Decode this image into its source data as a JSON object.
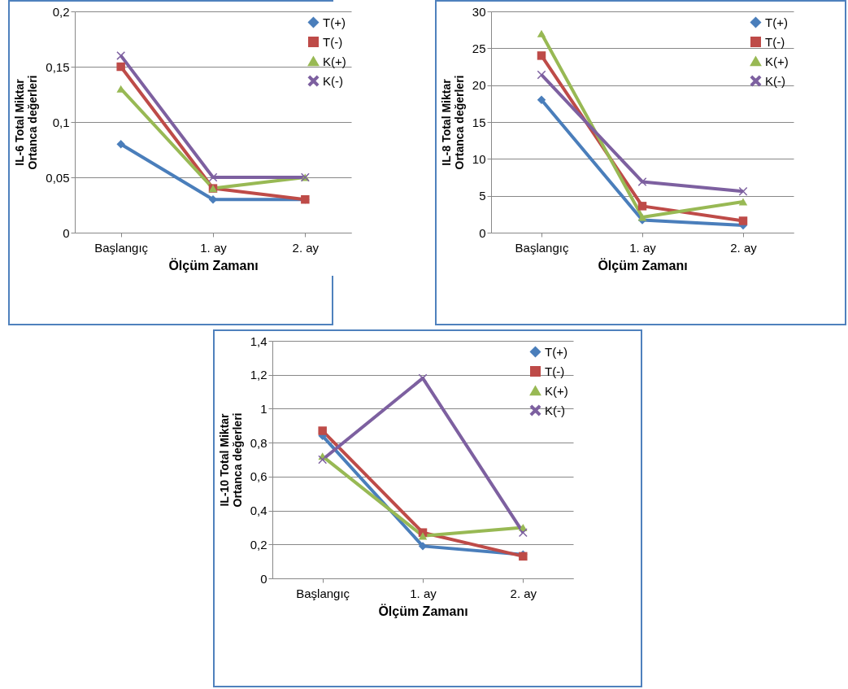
{
  "chart_data": [
    {
      "type": "line",
      "xlabel": "Ölçüm Zamanı",
      "ylabel": "IL-6 Total Miktar\nOrtanca değerleri",
      "categories": [
        "Başlangıç",
        "1. ay",
        "2. ay"
      ],
      "ylim": [
        0,
        0.2
      ],
      "yticks": [
        0,
        {
          "value": 0.05,
          "label": "0,05"
        },
        {
          "value": 0.1,
          "label": "0,1"
        },
        {
          "value": 0.15,
          "label": "0,15"
        },
        {
          "value": 0.2,
          "label": "0,2"
        }
      ],
      "grid": "y",
      "legend": "top right",
      "series": [
        {
          "name": "T(+)",
          "color": "#4a7ebb",
          "marker": "diamond",
          "values": [
            0.08,
            0.03,
            0.03
          ]
        },
        {
          "name": "T(-)",
          "color": "#be4b48",
          "marker": "square",
          "values": [
            0.15,
            0.04,
            0.03
          ]
        },
        {
          "name": "K(+)",
          "color": "#98b954",
          "marker": "triangle",
          "values": [
            0.13,
            0.04,
            0.05
          ]
        },
        {
          "name": "K(-)",
          "color": "#7d60a0",
          "marker": "cross",
          "values": [
            0.16,
            0.05,
            0.05
          ]
        }
      ]
    },
    {
      "type": "line",
      "xlabel": "Ölçüm Zamanı",
      "ylabel": "IL-8  Total Miktar\nOrtanca değerleri",
      "categories": [
        "Başlangıç",
        "1. ay",
        "2. ay"
      ],
      "ylim": [
        0,
        30
      ],
      "yticks": [
        0,
        5,
        10,
        15,
        20,
        25,
        30
      ],
      "grid": "y",
      "legend": "top right",
      "series": [
        {
          "name": "T(+)",
          "color": "#4a7ebb",
          "marker": "diamond",
          "values": [
            18,
            1.7,
            1
          ]
        },
        {
          "name": "T(-)",
          "color": "#be4b48",
          "marker": "square",
          "values": [
            24,
            3.6,
            1.6
          ]
        },
        {
          "name": "K(+)",
          "color": "#98b954",
          "marker": "triangle",
          "values": [
            27,
            2.1,
            4.2
          ]
        },
        {
          "name": "K(-)",
          "color": "#7d60a0",
          "marker": "cross",
          "values": [
            21.4,
            6.9,
            5.6
          ]
        }
      ]
    },
    {
      "type": "line",
      "xlabel": "Ölçüm Zamanı",
      "ylabel": "IL-10  Total Miktar\nOrtanca değerleri",
      "categories": [
        "Başlangıç",
        "1. ay",
        "2. ay"
      ],
      "ylim": [
        0,
        1.4
      ],
      "yticks": [
        0,
        {
          "value": 0.2,
          "label": "0,2"
        },
        {
          "value": 0.4,
          "label": "0,4"
        },
        {
          "value": 0.6,
          "label": "0,6"
        },
        {
          "value": 0.8,
          "label": "0,8"
        },
        1,
        {
          "value": 1.2,
          "label": "1,2"
        },
        {
          "value": 1.4,
          "label": "1,4"
        }
      ],
      "grid": "y",
      "legend": "top right",
      "series": [
        {
          "name": "T(+)",
          "color": "#4a7ebb",
          "marker": "diamond",
          "values": [
            0.84,
            0.19,
            0.14
          ]
        },
        {
          "name": "T(-)",
          "color": "#be4b48",
          "marker": "square",
          "values": [
            0.87,
            0.27,
            0.13
          ]
        },
        {
          "name": "K(+)",
          "color": "#98b954",
          "marker": "triangle",
          "values": [
            0.72,
            0.25,
            0.3
          ]
        },
        {
          "name": "K(-)",
          "color": "#7d60a0",
          "marker": "cross",
          "values": [
            0.7,
            1.18,
            0.27
          ]
        }
      ]
    }
  ]
}
